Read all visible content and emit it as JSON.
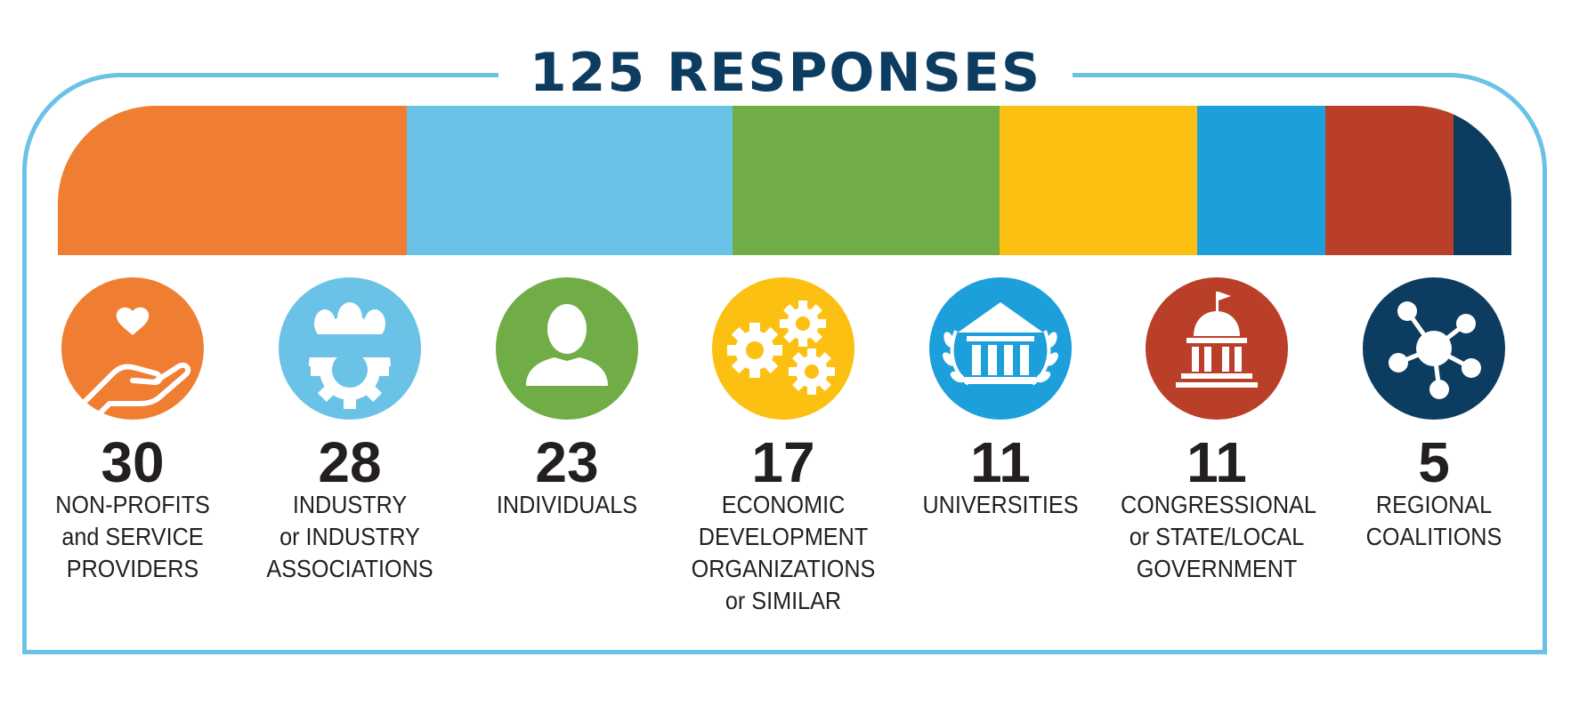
{
  "chart_data": {
    "type": "bar",
    "title": "125 RESPONSES",
    "categories": [
      "NON-PROFITS and SERVICE PROVIDERS",
      "INDUSTRY or INDUSTRY ASSOCIATIONS",
      "INDIVIDUALS",
      "ECONOMIC DEVELOPMENT ORGANIZATIONS or SIMILAR",
      "UNIVERSITIES",
      "CONGRESSIONAL or STATE/LOCAL GOVERNMENT",
      "REGIONAL COALITIONS"
    ],
    "values": [
      30,
      28,
      23,
      17,
      11,
      11,
      5
    ],
    "total": 125,
    "orientation": "stacked-horizontal"
  },
  "items": [
    {
      "count": "30",
      "label_lines": [
        "NON-PROFITS",
        "and SERVICE",
        "PROVIDERS"
      ],
      "color": "#ef7e32",
      "icon": "hand-heart-icon"
    },
    {
      "count": "28",
      "label_lines": [
        "INDUSTRY",
        "or INDUSTRY",
        "ASSOCIATIONS"
      ],
      "color": "#6bc2e7",
      "icon": "people-gear-icon"
    },
    {
      "count": "23",
      "label_lines": [
        "INDIVIDUALS"
      ],
      "color": "#70ad47",
      "icon": "person-icon"
    },
    {
      "count": "17",
      "label_lines": [
        "ECONOMIC",
        "DEVELOPMENT",
        "ORGANIZATIONS",
        "or SIMILAR"
      ],
      "color": "#fcc012",
      "icon": "gears-icon"
    },
    {
      "count": "11",
      "label_lines": [
        "UNIVERSITIES"
      ],
      "color": "#1c9fdb",
      "icon": "university-icon"
    },
    {
      "count": "11",
      "label_lines": [
        "CONGRESSIONAL",
        "or STATE/LOCAL",
        "GOVERNMENT"
      ],
      "color": "#b93f28",
      "icon": "capitol-icon"
    },
    {
      "count": "5",
      "label_lines": [
        "REGIONAL",
        "COALITIONS"
      ],
      "color": "#0d3c61",
      "icon": "network-hub-icon"
    }
  ]
}
